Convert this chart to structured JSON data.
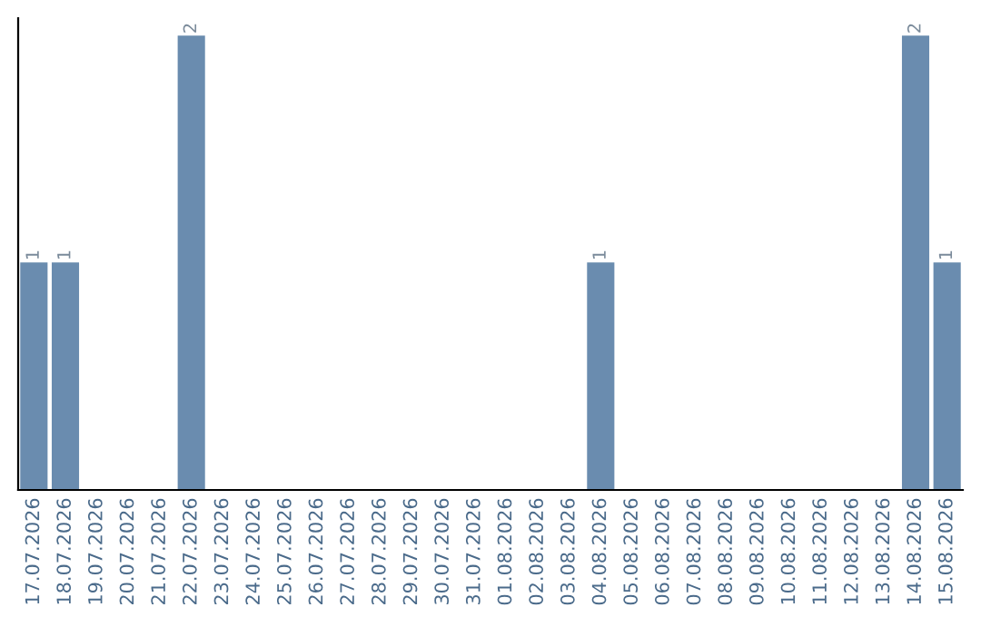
{
  "chart_data": {
    "type": "bar",
    "categories": [
      "17.07.2026",
      "18.07.2026",
      "19.07.2026",
      "20.07.2026",
      "21.07.2026",
      "22.07.2026",
      "23.07.2026",
      "24.07.2026",
      "25.07.2026",
      "26.07.2026",
      "27.07.2026",
      "28.07.2026",
      "29.07.2026",
      "30.07.2026",
      "31.07.2026",
      "01.08.2026",
      "02.08.2026",
      "03.08.2026",
      "04.08.2026",
      "05.08.2026",
      "06.08.2026",
      "07.08.2026",
      "08.08.2026",
      "09.08.2026",
      "10.08.2026",
      "11.08.2026",
      "12.08.2026",
      "13.08.2026",
      "14.08.2026",
      "15.08.2026"
    ],
    "values": [
      1,
      1,
      0,
      0,
      0,
      2,
      0,
      0,
      0,
      0,
      0,
      0,
      0,
      0,
      0,
      0,
      0,
      0,
      1,
      0,
      0,
      0,
      0,
      0,
      0,
      0,
      0,
      0,
      2,
      1
    ],
    "value_labels": [
      "1",
      "1",
      null,
      null,
      null,
      "2",
      null,
      null,
      null,
      null,
      null,
      null,
      null,
      null,
      null,
      null,
      null,
      null,
      "1",
      null,
      null,
      null,
      null,
      null,
      null,
      null,
      null,
      null,
      "2",
      "1"
    ],
    "color": "#6a8caf",
    "ylim": [
      0,
      2.08
    ],
    "tick_labels": "x",
    "grid": false
  }
}
